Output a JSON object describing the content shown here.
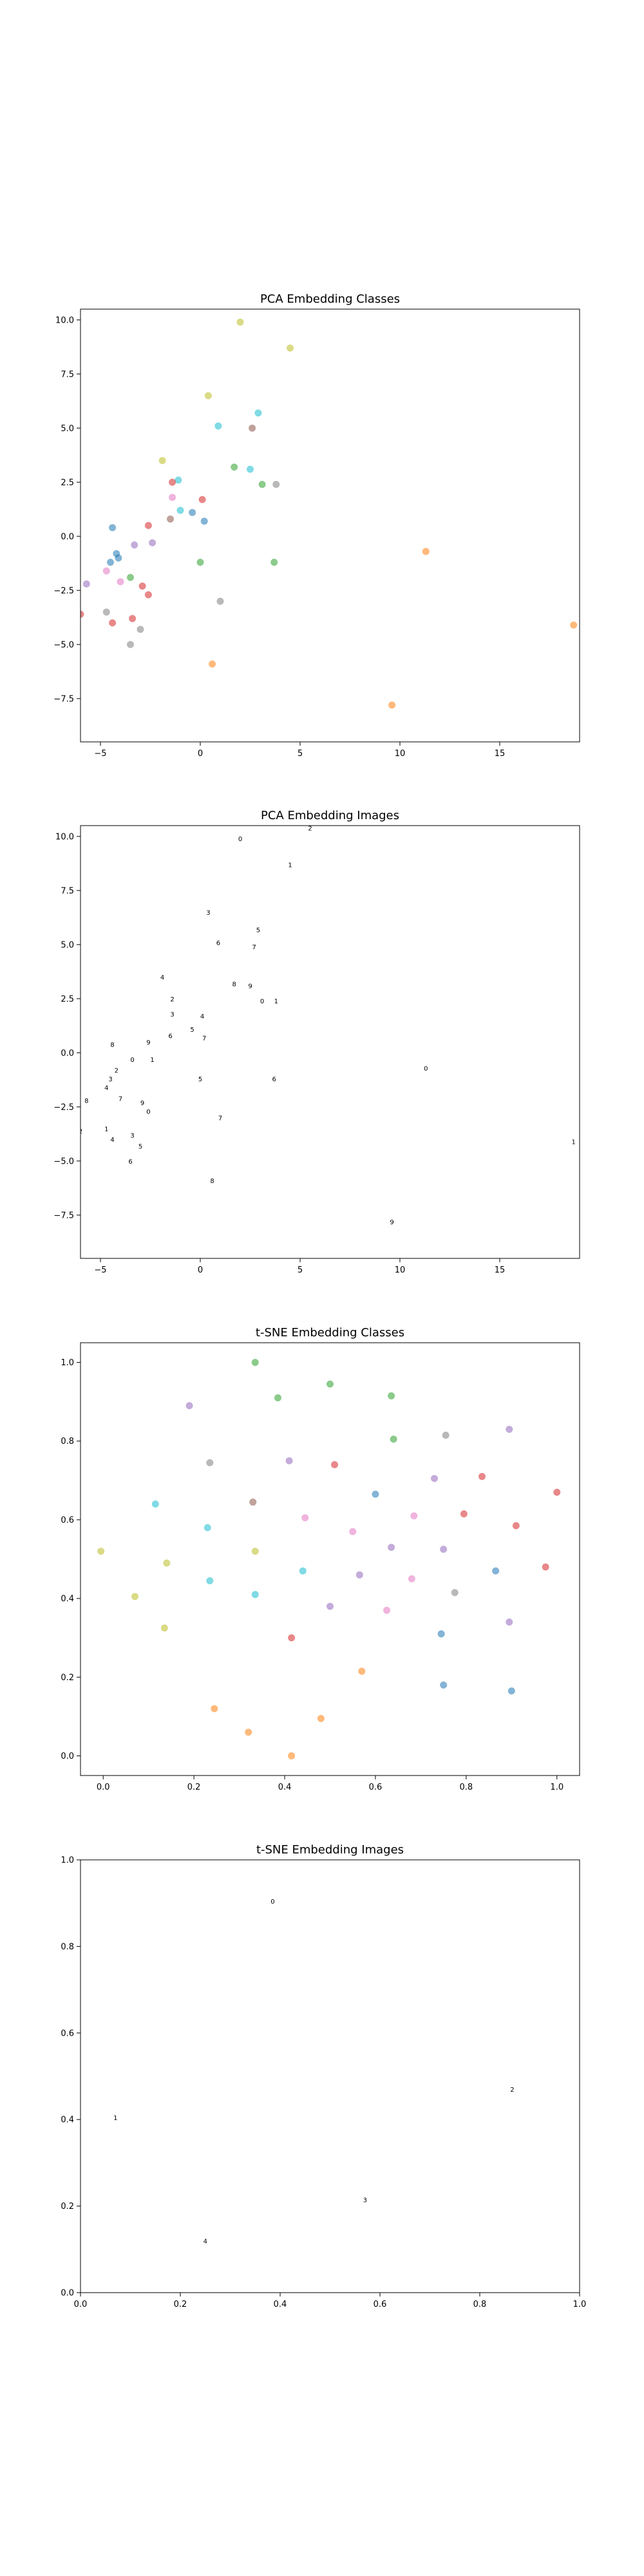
{
  "chart_data": [
    {
      "type": "scatter",
      "title": "PCA Embedding Classes",
      "xlabel": "",
      "ylabel": "",
      "xlim": [
        -6.0,
        19.0
      ],
      "ylim": [
        -9.5,
        10.5
      ],
      "xticks": [
        -5,
        0,
        5,
        10,
        15
      ],
      "xtick_labels": [
        "−5",
        "0",
        "5",
        "10",
        "15"
      ],
      "yticks": [
        -7.5,
        -5.0,
        -2.5,
        0.0,
        2.5,
        5.0,
        7.5,
        10.0
      ],
      "ytick_labels": [
        "−7.5",
        "−5.0",
        "−2.5",
        "0.0",
        "2.5",
        "5.0",
        "7.5",
        "10.0"
      ],
      "grid": false,
      "points": [
        {
          "x": 2.0,
          "y": 9.9,
          "color": "#bcbd22"
        },
        {
          "x": 4.5,
          "y": 8.7,
          "color": "#bcbd22"
        },
        {
          "x": 0.4,
          "y": 6.5,
          "color": "#bcbd22"
        },
        {
          "x": -1.9,
          "y": 3.5,
          "color": "#bcbd22"
        },
        {
          "x": 2.9,
          "y": 5.7,
          "color": "#17becf"
        },
        {
          "x": 0.9,
          "y": 5.1,
          "color": "#17becf"
        },
        {
          "x": 2.5,
          "y": 3.1,
          "color": "#17becf"
        },
        {
          "x": -1.1,
          "y": 2.6,
          "color": "#17becf"
        },
        {
          "x": -1.0,
          "y": 1.2,
          "color": "#17becf"
        },
        {
          "x": 2.6,
          "y": 5.0,
          "color": "#8c564b"
        },
        {
          "x": 1.7,
          "y": 3.2,
          "color": "#2ca02c"
        },
        {
          "x": 3.1,
          "y": 2.4,
          "color": "#2ca02c"
        },
        {
          "x": 3.8,
          "y": 2.4,
          "color": "#7f7f7f"
        },
        {
          "x": 0.0,
          "y": -1.2,
          "color": "#2ca02c"
        },
        {
          "x": 3.7,
          "y": -1.2,
          "color": "#2ca02c"
        },
        {
          "x": -3.5,
          "y": -1.9,
          "color": "#2ca02c"
        },
        {
          "x": -1.4,
          "y": 1.8,
          "color": "#e377c2"
        },
        {
          "x": -1.4,
          "y": 2.5,
          "color": "#d62728"
        },
        {
          "x": 0.1,
          "y": 1.7,
          "color": "#d62728"
        },
        {
          "x": -1.5,
          "y": 0.8,
          "color": "#8c564b"
        },
        {
          "x": -0.4,
          "y": 1.1,
          "color": "#1f77b4"
        },
        {
          "x": 0.2,
          "y": 0.7,
          "color": "#1f77b4"
        },
        {
          "x": -2.6,
          "y": 0.5,
          "color": "#d62728"
        },
        {
          "x": -4.4,
          "y": 0.4,
          "color": "#1f77b4"
        },
        {
          "x": -3.3,
          "y": -0.4,
          "color": "#9467bd"
        },
        {
          "x": -2.4,
          "y": -0.3,
          "color": "#9467bd"
        },
        {
          "x": -4.2,
          "y": -0.8,
          "color": "#1f77b4"
        },
        {
          "x": -4.1,
          "y": -1.0,
          "color": "#1f77b4"
        },
        {
          "x": -4.5,
          "y": -1.2,
          "color": "#1f77b4"
        },
        {
          "x": -4.0,
          "y": -2.1,
          "color": "#e377c2"
        },
        {
          "x": -4.7,
          "y": -1.6,
          "color": "#e377c2"
        },
        {
          "x": -5.7,
          "y": -2.2,
          "color": "#9467bd"
        },
        {
          "x": -2.9,
          "y": -2.3,
          "color": "#d62728"
        },
        {
          "x": -2.6,
          "y": -2.7,
          "color": "#d62728"
        },
        {
          "x": -4.4,
          "y": -4.0,
          "color": "#d62728"
        },
        {
          "x": -3.4,
          "y": -3.8,
          "color": "#d62728"
        },
        {
          "x": -6.0,
          "y": -3.6,
          "color": "#d62728"
        },
        {
          "x": -4.7,
          "y": -3.5,
          "color": "#7f7f7f"
        },
        {
          "x": -3.0,
          "y": -4.3,
          "color": "#7f7f7f"
        },
        {
          "x": -3.5,
          "y": -5.0,
          "color": "#7f7f7f"
        },
        {
          "x": 1.0,
          "y": -3.0,
          "color": "#7f7f7f"
        },
        {
          "x": 0.6,
          "y": -5.9,
          "color": "#ff7f0e"
        },
        {
          "x": 9.6,
          "y": -7.8,
          "color": "#ff7f0e"
        },
        {
          "x": 11.3,
          "y": -0.7,
          "color": "#ff7f0e"
        },
        {
          "x": 18.7,
          "y": -4.1,
          "color": "#ff7f0e"
        }
      ]
    },
    {
      "type": "scatter",
      "title": "PCA Embedding Images",
      "xlabel": "",
      "ylabel": "",
      "xlim": [
        -6.0,
        19.0
      ],
      "ylim": [
        -9.5,
        10.5
      ],
      "xticks": [
        -5,
        0,
        5,
        10,
        15
      ],
      "xtick_labels": [
        "−5",
        "0",
        "5",
        "10",
        "15"
      ],
      "yticks": [
        -7.5,
        -5.0,
        -2.5,
        0.0,
        2.5,
        5.0,
        7.5,
        10.0
      ],
      "ytick_labels": [
        "−7.5",
        "−5.0",
        "−2.5",
        "0.0",
        "2.5",
        "5.0",
        "7.5",
        "10.0"
      ],
      "grid": false,
      "marker": "digit-glyph",
      "points": [
        {
          "x": 2.0,
          "y": 9.9
        },
        {
          "x": 4.5,
          "y": 8.7
        },
        {
          "x": 5.5,
          "y": 10.4
        },
        {
          "x": 0.4,
          "y": 6.5
        },
        {
          "x": -1.9,
          "y": 3.5
        },
        {
          "x": 2.9,
          "y": 5.7
        },
        {
          "x": 0.9,
          "y": 5.1
        },
        {
          "x": 2.7,
          "y": 4.9
        },
        {
          "x": 1.7,
          "y": 3.2
        },
        {
          "x": 2.5,
          "y": 3.1
        },
        {
          "x": 3.1,
          "y": 2.4
        },
        {
          "x": 3.8,
          "y": 2.4
        },
        {
          "x": -1.4,
          "y": 2.5
        },
        {
          "x": -1.4,
          "y": 1.8
        },
        {
          "x": 0.1,
          "y": 1.7
        },
        {
          "x": -0.4,
          "y": 1.1
        },
        {
          "x": -1.5,
          "y": 0.8
        },
        {
          "x": 0.2,
          "y": 0.7
        },
        {
          "x": -4.4,
          "y": 0.4
        },
        {
          "x": -2.6,
          "y": 0.5
        },
        {
          "x": -3.4,
          "y": -0.3
        },
        {
          "x": -2.4,
          "y": -0.3
        },
        {
          "x": -4.2,
          "y": -0.8
        },
        {
          "x": -4.5,
          "y": -1.2
        },
        {
          "x": -4.7,
          "y": -1.6
        },
        {
          "x": 0.0,
          "y": -1.2
        },
        {
          "x": 3.7,
          "y": -1.2
        },
        {
          "x": -4.0,
          "y": -2.1
        },
        {
          "x": -5.7,
          "y": -2.2
        },
        {
          "x": -2.9,
          "y": -2.3
        },
        {
          "x": -2.6,
          "y": -2.7
        },
        {
          "x": -4.7,
          "y": -3.5
        },
        {
          "x": -6.0,
          "y": -3.6
        },
        {
          "x": -3.4,
          "y": -3.8
        },
        {
          "x": -4.4,
          "y": -4.0
        },
        {
          "x": -3.0,
          "y": -4.3
        },
        {
          "x": -3.5,
          "y": -5.0
        },
        {
          "x": 1.0,
          "y": -3.0
        },
        {
          "x": 0.6,
          "y": -5.9
        },
        {
          "x": 9.6,
          "y": -7.8
        },
        {
          "x": 11.3,
          "y": -0.7
        },
        {
          "x": 18.7,
          "y": -4.1
        }
      ]
    },
    {
      "type": "scatter",
      "title": "t-SNE Embedding Classes",
      "xlabel": "",
      "ylabel": "",
      "xlim": [
        -0.05,
        1.05
      ],
      "ylim": [
        -0.05,
        1.05
      ],
      "xticks": [
        0.0,
        0.2,
        0.4,
        0.6,
        0.8,
        1.0
      ],
      "xtick_labels": [
        "0.0",
        "0.2",
        "0.4",
        "0.6",
        "0.8",
        "1.0"
      ],
      "yticks": [
        0.0,
        0.2,
        0.4,
        0.6,
        0.8,
        1.0
      ],
      "ytick_labels": [
        "0.0",
        "0.2",
        "0.4",
        "0.6",
        "0.8",
        "1.0"
      ],
      "grid": false,
      "points": [
        {
          "x": 0.335,
          "y": 1.0,
          "color": "#2ca02c"
        },
        {
          "x": 0.385,
          "y": 0.91,
          "color": "#2ca02c"
        },
        {
          "x": 0.5,
          "y": 0.945,
          "color": "#2ca02c"
        },
        {
          "x": 0.635,
          "y": 0.915,
          "color": "#2ca02c"
        },
        {
          "x": 0.64,
          "y": 0.805,
          "color": "#2ca02c"
        },
        {
          "x": 0.19,
          "y": 0.89,
          "color": "#9467bd"
        },
        {
          "x": 0.235,
          "y": 0.745,
          "color": "#7f7f7f"
        },
        {
          "x": 0.41,
          "y": 0.75,
          "color": "#9467bd"
        },
        {
          "x": 0.51,
          "y": 0.74,
          "color": "#d62728"
        },
        {
          "x": 0.755,
          "y": 0.815,
          "color": "#7f7f7f"
        },
        {
          "x": 0.895,
          "y": 0.83,
          "color": "#9467bd"
        },
        {
          "x": 0.835,
          "y": 0.71,
          "color": "#d62728"
        },
        {
          "x": 0.73,
          "y": 0.705,
          "color": "#9467bd"
        },
        {
          "x": 0.115,
          "y": 0.64,
          "color": "#17becf"
        },
        {
          "x": 0.33,
          "y": 0.645,
          "color": "#8c564b"
        },
        {
          "x": 0.6,
          "y": 0.665,
          "color": "#1f77b4"
        },
        {
          "x": 0.23,
          "y": 0.58,
          "color": "#17becf"
        },
        {
          "x": 0.445,
          "y": 0.605,
          "color": "#e377c2"
        },
        {
          "x": 0.685,
          "y": 0.61,
          "color": "#e377c2"
        },
        {
          "x": 0.795,
          "y": 0.615,
          "color": "#d62728"
        },
        {
          "x": 1.0,
          "y": 0.67,
          "color": "#d62728"
        },
        {
          "x": 0.91,
          "y": 0.585,
          "color": "#d62728"
        },
        {
          "x": 0.55,
          "y": 0.57,
          "color": "#e377c2"
        },
        {
          "x": 0.635,
          "y": 0.53,
          "color": "#9467bd"
        },
        {
          "x": 0.75,
          "y": 0.525,
          "color": "#9467bd"
        },
        {
          "x": -0.005,
          "y": 0.52,
          "color": "#bcbd22"
        },
        {
          "x": 0.14,
          "y": 0.49,
          "color": "#bcbd22"
        },
        {
          "x": 0.335,
          "y": 0.52,
          "color": "#bcbd22"
        },
        {
          "x": 0.235,
          "y": 0.445,
          "color": "#17becf"
        },
        {
          "x": 0.44,
          "y": 0.47,
          "color": "#17becf"
        },
        {
          "x": 0.565,
          "y": 0.46,
          "color": "#9467bd"
        },
        {
          "x": 0.68,
          "y": 0.45,
          "color": "#e377c2"
        },
        {
          "x": 0.865,
          "y": 0.47,
          "color": "#1f77b4"
        },
        {
          "x": 0.975,
          "y": 0.48,
          "color": "#d62728"
        },
        {
          "x": 0.07,
          "y": 0.405,
          "color": "#bcbd22"
        },
        {
          "x": 0.335,
          "y": 0.41,
          "color": "#17becf"
        },
        {
          "x": 0.5,
          "y": 0.38,
          "color": "#9467bd"
        },
        {
          "x": 0.625,
          "y": 0.37,
          "color": "#e377c2"
        },
        {
          "x": 0.775,
          "y": 0.415,
          "color": "#7f7f7f"
        },
        {
          "x": 0.135,
          "y": 0.325,
          "color": "#bcbd22"
        },
        {
          "x": 0.415,
          "y": 0.3,
          "color": "#d62728"
        },
        {
          "x": 0.745,
          "y": 0.31,
          "color": "#1f77b4"
        },
        {
          "x": 0.895,
          "y": 0.34,
          "color": "#9467bd"
        },
        {
          "x": 0.57,
          "y": 0.215,
          "color": "#ff7f0e"
        },
        {
          "x": 0.75,
          "y": 0.18,
          "color": "#1f77b4"
        },
        {
          "x": 0.9,
          "y": 0.165,
          "color": "#1f77b4"
        },
        {
          "x": 0.245,
          "y": 0.12,
          "color": "#ff7f0e"
        },
        {
          "x": 0.48,
          "y": 0.095,
          "color": "#ff7f0e"
        },
        {
          "x": 0.32,
          "y": 0.06,
          "color": "#ff7f0e"
        },
        {
          "x": 0.415,
          "y": 0.0,
          "color": "#ff7f0e"
        }
      ]
    },
    {
      "type": "scatter",
      "title": "t-SNE Embedding Images",
      "xlabel": "",
      "ylabel": "",
      "xlim": [
        0.0,
        1.0
      ],
      "ylim": [
        0.0,
        1.0
      ],
      "xticks": [
        0.0,
        0.2,
        0.4,
        0.6,
        0.8,
        1.0
      ],
      "xtick_labels": [
        "0.0",
        "0.2",
        "0.4",
        "0.6",
        "0.8",
        "1.0"
      ],
      "yticks": [
        0.0,
        0.2,
        0.4,
        0.6,
        0.8,
        1.0
      ],
      "ytick_labels": [
        "0.0",
        "0.2",
        "0.4",
        "0.6",
        "0.8",
        "1.0"
      ],
      "grid": false,
      "marker": "digit-glyph",
      "points": [
        {
          "x": 0.385,
          "y": 0.905
        },
        {
          "x": 0.07,
          "y": 0.405
        },
        {
          "x": 0.865,
          "y": 0.47
        },
        {
          "x": 0.57,
          "y": 0.215
        },
        {
          "x": 0.25,
          "y": 0.12
        }
      ]
    }
  ]
}
